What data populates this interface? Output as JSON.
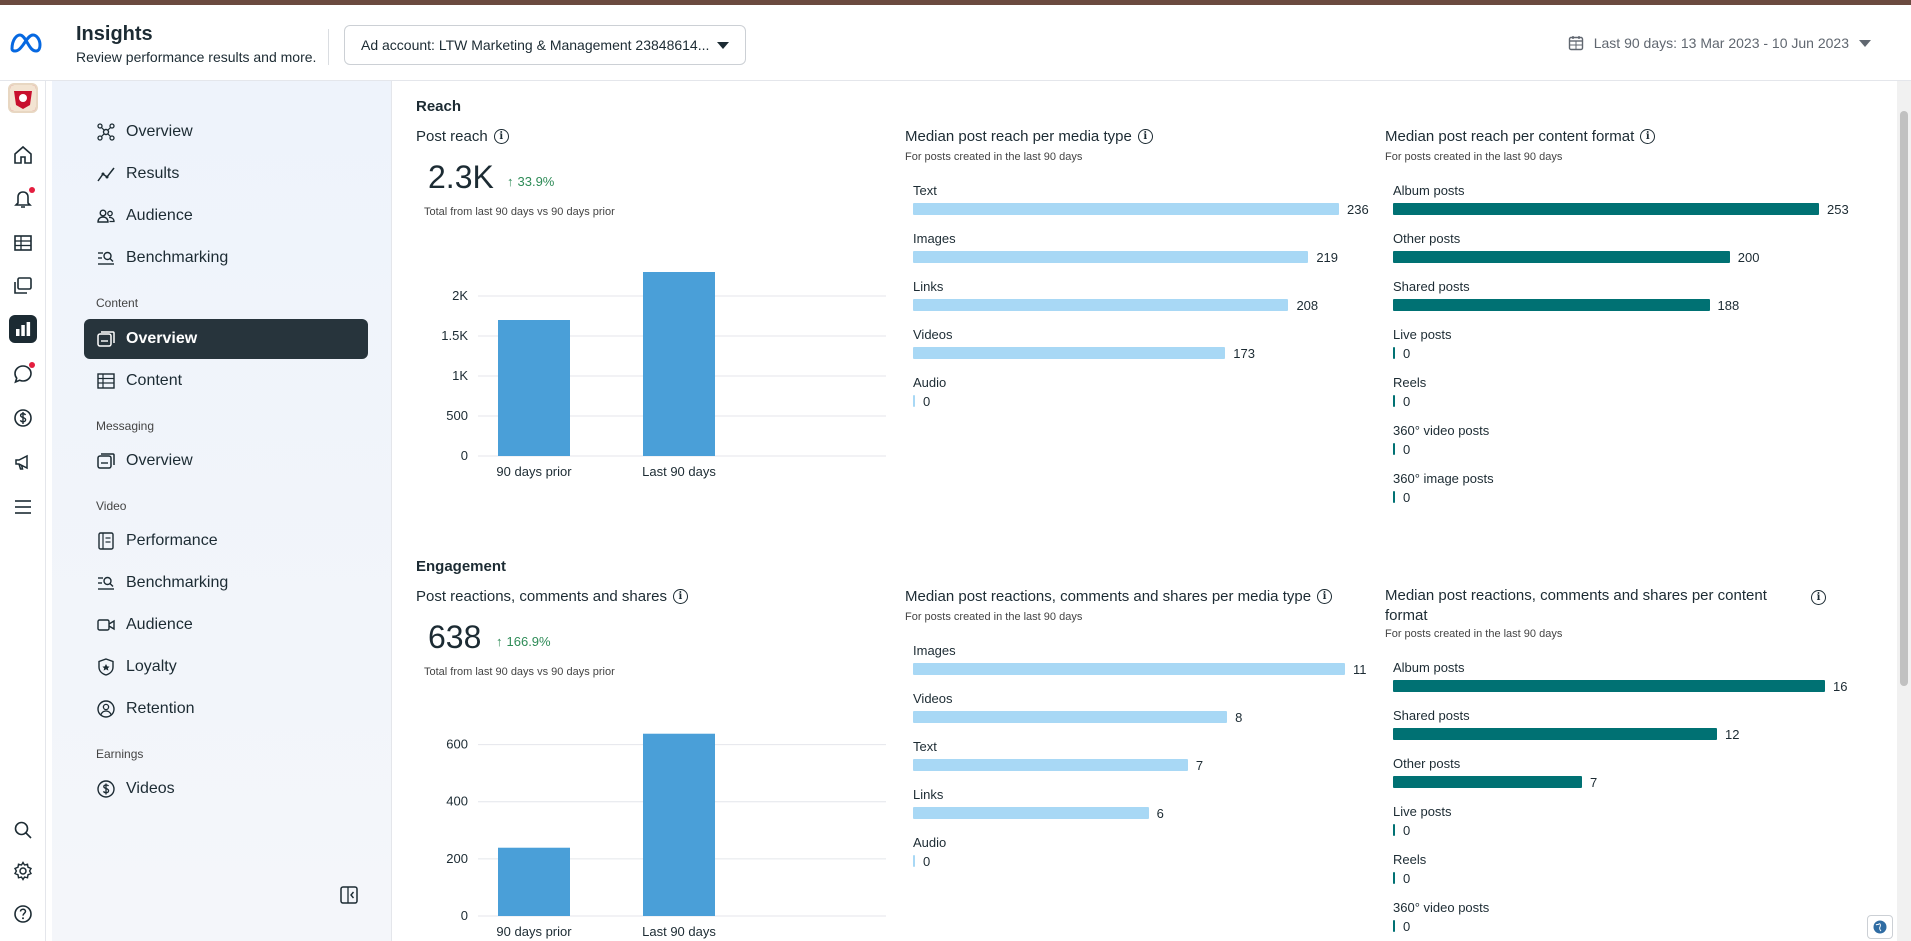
{
  "header": {
    "title": "Insights",
    "subtitle": "Review performance results and more.",
    "ad_account": "Ad account: LTW Marketing & Management 23848614...",
    "date_range": "Last 90 days: 13 Mar 2023 - 10 Jun 2023"
  },
  "rail": {
    "icons": [
      "home-icon",
      "bell-icon",
      "table-icon",
      "layers-icon",
      "bar-chart-icon",
      "chat-icon",
      "dollar-icon",
      "megaphone-icon",
      "menu-icon",
      "search-icon",
      "gear-icon",
      "help-icon"
    ]
  },
  "sidenav": {
    "items_top": [
      {
        "label": "Overview"
      },
      {
        "label": "Results"
      },
      {
        "label": "Audience"
      },
      {
        "label": "Benchmarking"
      }
    ],
    "content_section": "Content",
    "content_items": [
      {
        "label": "Overview"
      },
      {
        "label": "Content"
      }
    ],
    "messaging_section": "Messaging",
    "messaging_items": [
      {
        "label": "Overview"
      }
    ],
    "video_section": "Video",
    "video_items": [
      {
        "label": "Performance"
      },
      {
        "label": "Benchmarking"
      },
      {
        "label": "Audience"
      },
      {
        "label": "Loyalty"
      },
      {
        "label": "Retention"
      }
    ],
    "earnings_section": "Earnings",
    "earnings_items": [
      {
        "label": "Videos"
      }
    ]
  },
  "reach": {
    "section_title": "Reach",
    "post_reach": {
      "title": "Post reach",
      "value": "2.3K",
      "delta": "33.9%",
      "note": "Total from last 90 days vs 90 days prior"
    },
    "media_type": {
      "title": "Median post reach per media type",
      "subtitle": "For posts created in the last 90 days"
    },
    "content_format": {
      "title": "Median post reach per content format",
      "subtitle": "For posts created in the last 90 days"
    }
  },
  "engagement": {
    "section_title": "Engagement",
    "post_rcs": {
      "title": "Post reactions, comments and shares",
      "value": "638",
      "delta": "166.9%",
      "note": "Total from last 90 days vs 90 days prior"
    },
    "media_type": {
      "title": "Median post reactions, comments and shares per media type",
      "subtitle": "For posts created in the last 90 days"
    },
    "content_format": {
      "title": "Median post reactions, comments and shares per content format",
      "subtitle": "For posts created in the last 90 days"
    }
  },
  "colors": {
    "bar_blue": "#4a9fd8",
    "bar_light": "#a8d8f5",
    "bar_dark": "#007173",
    "delta_green": "#2e8b57",
    "nav_active": "#27343c"
  },
  "chart_data": [
    {
      "type": "bar",
      "categories": [
        "90 days prior",
        "Last 90 days"
      ],
      "values": [
        1700,
        2300
      ],
      "ylim": [
        0,
        2500
      ],
      "yticks": [
        "0",
        "500",
        "1K",
        "1.5K",
        "2K"
      ],
      "ytick_values": [
        0,
        500,
        1000,
        1500,
        2000
      ]
    },
    {
      "type": "bar",
      "orientation": "horizontal",
      "categories": [
        "Text",
        "Images",
        "Links",
        "Videos",
        "Audio"
      ],
      "values": [
        236,
        219,
        208,
        173,
        0
      ]
    },
    {
      "type": "bar",
      "orientation": "horizontal",
      "categories": [
        "Album posts",
        "Other posts",
        "Shared posts",
        "Live posts",
        "Reels",
        "360° video posts",
        "360° image posts"
      ],
      "values": [
        253,
        200,
        188,
        0,
        0,
        0,
        0
      ]
    },
    {
      "type": "bar",
      "categories": [
        "90 days prior",
        "Last 90 days"
      ],
      "values": [
        239,
        638
      ],
      "ylim": [
        0,
        700
      ],
      "yticks": [
        "0",
        "200",
        "400",
        "600"
      ],
      "ytick_values": [
        0,
        200,
        400,
        600
      ]
    },
    {
      "type": "bar",
      "orientation": "horizontal",
      "categories": [
        "Images",
        "Videos",
        "Text",
        "Links",
        "Audio"
      ],
      "values": [
        11,
        8,
        7,
        6,
        0
      ]
    },
    {
      "type": "bar",
      "orientation": "horizontal",
      "categories": [
        "Album posts",
        "Shared posts",
        "Other posts",
        "Live posts",
        "Reels",
        "360° video posts"
      ],
      "values": [
        16,
        12,
        7,
        0,
        0,
        0
      ]
    }
  ]
}
